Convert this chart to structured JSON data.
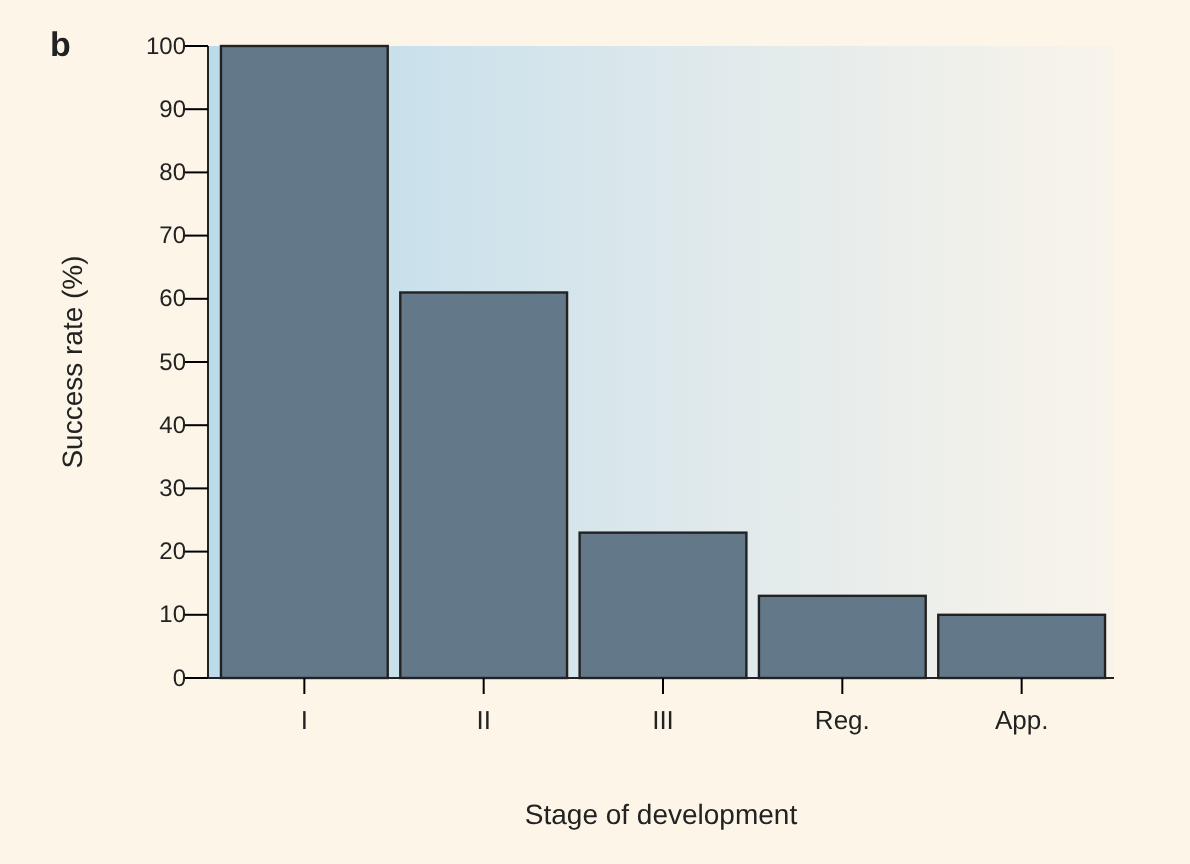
{
  "chart_data": {
    "type": "bar",
    "title": "b",
    "xlabel": "Stage of development",
    "ylabel": "Success rate (%)",
    "categories": [
      "I",
      "II",
      "III",
      "Reg.",
      "App."
    ],
    "values": [
      100,
      61,
      23,
      13,
      10
    ],
    "color": "#63798a",
    "ylim": [
      0,
      100
    ],
    "yticks": [
      0,
      10,
      20,
      30,
      40,
      50,
      60,
      70,
      80,
      90,
      100
    ],
    "grid": false
  }
}
